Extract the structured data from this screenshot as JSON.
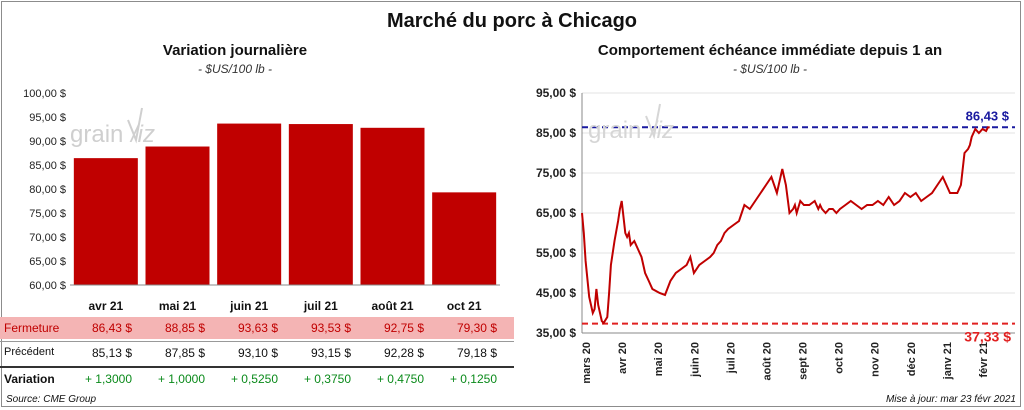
{
  "title": "Marché du porc à Chicago",
  "left": {
    "subtitle": "Variation  journalière",
    "unit": "- $US/100 lb -"
  },
  "right": {
    "subtitle": "Comportement  échéance immédiate depuis 1 an",
    "unit": "- $US/100 lb -",
    "high_label": "86,43 $",
    "low_label": "37,33 $"
  },
  "table": {
    "row_labels": [
      "Fermeture",
      "Précédent",
      "Variation"
    ],
    "fermeture": [
      "86,43  $",
      "88,85  $",
      "93,63  $",
      "93,53  $",
      "92,75  $",
      "79,30  $"
    ],
    "precedent": [
      "85,13  $",
      "87,85  $",
      "93,10  $",
      "93,15  $",
      "92,28  $",
      "79,18  $"
    ],
    "variation": [
      "+ 1,3000",
      "+ 1,0000",
      "+ 0,5250",
      "+ 0,3750",
      "+ 0,4750",
      "+ 0,1250"
    ]
  },
  "footer": {
    "source": "Source: CME Group",
    "updated": "Mise à jour: mar 23 févr 2021"
  },
  "colors": {
    "bar": "#c00000",
    "high_line": "#1a1aa0",
    "low_line": "#e02020",
    "line": "#c00000",
    "increase": "#0a8a1a"
  },
  "chart_data": [
    {
      "type": "bar",
      "title": "Variation  journalière",
      "ylabel": "$US/100 lb",
      "categories": [
        "avr 21",
        "mai 21",
        "juin 21",
        "juil 21",
        "août 21",
        "oct 21"
      ],
      "values": [
        86.43,
        88.85,
        93.63,
        93.53,
        92.75,
        79.3
      ],
      "ylim": [
        60,
        100
      ],
      "yticks": [
        60,
        65,
        70,
        75,
        80,
        85,
        90,
        95,
        100
      ],
      "ytick_labels": [
        "60,00 $",
        "65,00 $",
        "70,00 $",
        "75,00 $",
        "80,00 $",
        "85,00 $",
        "90,00 $",
        "95,00 $",
        "100,00 $"
      ]
    },
    {
      "type": "line",
      "title": "Comportement  échéance immédiate depuis 1 an",
      "ylabel": "$US/100 lb",
      "ylim": [
        35,
        95
      ],
      "yticks": [
        35,
        45,
        55,
        65,
        75,
        85,
        95
      ],
      "ytick_labels": [
        "35,00 $",
        "45,00 $",
        "55,00 $",
        "65,00 $",
        "75,00 $",
        "85,00 $",
        "95,00 $"
      ],
      "xlim": [
        0,
        12
      ],
      "xticks": [
        0,
        1,
        2,
        3,
        4,
        5,
        6,
        7,
        8,
        9,
        10,
        11
      ],
      "xtick_labels": [
        "mars 20",
        "avr 20",
        "mai 20",
        "juin 20",
        "juil 20",
        "août 20",
        "sept 20",
        "oct 20",
        "nov 20",
        "déc 20",
        "janv 21",
        "févr 21"
      ],
      "reference_lines": [
        {
          "name": "max",
          "value": 86.43
        },
        {
          "name": "min",
          "value": 37.33
        }
      ],
      "x": [
        0.0,
        0.05,
        0.1,
        0.2,
        0.3,
        0.35,
        0.4,
        0.45,
        0.55,
        0.6,
        0.7,
        0.75,
        0.8,
        0.85,
        0.9,
        1.0,
        1.05,
        1.1,
        1.15,
        1.2,
        1.25,
        1.3,
        1.35,
        1.45,
        1.55,
        1.65,
        1.75,
        1.85,
        1.95,
        2.05,
        2.15,
        2.3,
        2.45,
        2.6,
        2.75,
        2.9,
        3.0,
        3.1,
        3.25,
        3.4,
        3.55,
        3.65,
        3.75,
        3.85,
        3.95,
        4.05,
        4.2,
        4.35,
        4.5,
        4.65,
        4.8,
        4.95,
        5.1,
        5.25,
        5.4,
        5.55,
        5.65,
        5.75,
        5.85,
        5.9,
        5.95,
        6.05,
        6.15,
        6.3,
        6.45,
        6.55,
        6.6,
        6.65,
        6.75,
        6.85,
        6.95,
        7.05,
        7.15,
        7.3,
        7.45,
        7.6,
        7.75,
        7.9,
        8.05,
        8.2,
        8.35,
        8.5,
        8.65,
        8.8,
        8.95,
        9.1,
        9.25,
        9.4,
        9.55,
        9.7,
        9.85,
        10.0,
        10.1,
        10.2,
        10.3,
        10.4,
        10.5,
        10.6,
        10.7,
        10.75,
        10.8,
        10.85,
        10.9,
        11.0,
        11.1,
        11.2,
        11.25,
        11.3
      ],
      "y": [
        65,
        60,
        53,
        44,
        40,
        41,
        46,
        42,
        38,
        37.5,
        39,
        45,
        52,
        55,
        58,
        63,
        66,
        68,
        64,
        60,
        59,
        60,
        57,
        58,
        56,
        54,
        50,
        48,
        46,
        45.5,
        45,
        44.5,
        48,
        50,
        51,
        52,
        54,
        50,
        52,
        53,
        54,
        55,
        57,
        58,
        60,
        61,
        62,
        63,
        67,
        66,
        68,
        70,
        72,
        74,
        70,
        76,
        72,
        65,
        66,
        67,
        65,
        68,
        67,
        67,
        68,
        66,
        67,
        66,
        65,
        66,
        66,
        65,
        66,
        67,
        68,
        67,
        66,
        67,
        67,
        68,
        67,
        69,
        67,
        68,
        70,
        69,
        70,
        68,
        69,
        70,
        72,
        74,
        72,
        70,
        70,
        70,
        72,
        80,
        81,
        82,
        84,
        85,
        86,
        85,
        86,
        85.5,
        86.4,
        86.43
      ]
    }
  ]
}
